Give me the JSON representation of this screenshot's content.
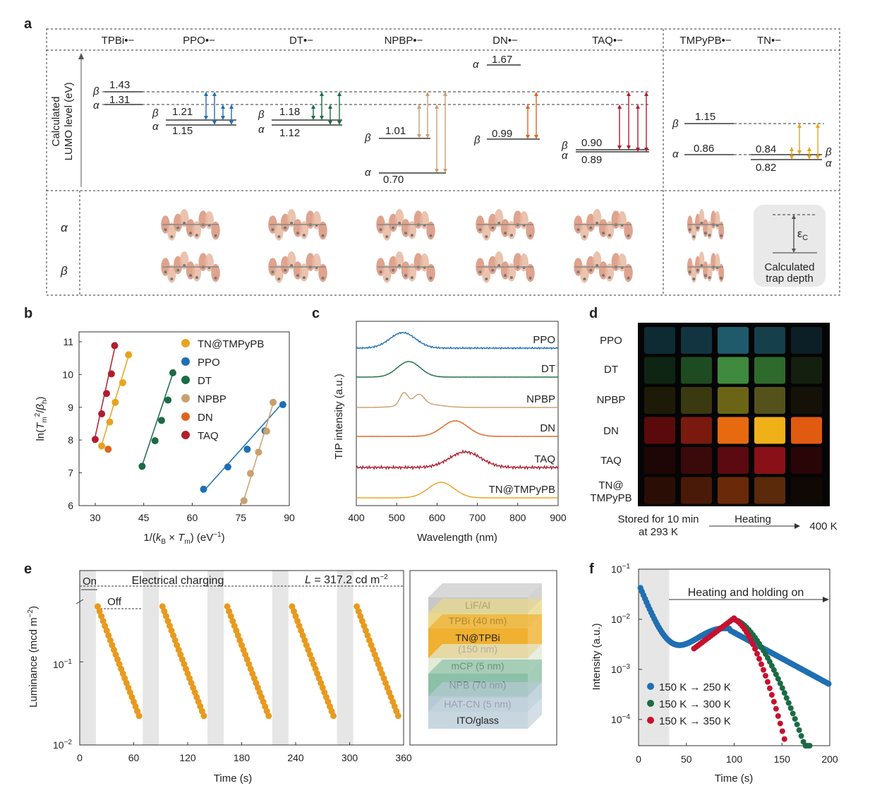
{
  "panel_labels": {
    "a": "a",
    "b": "b",
    "c": "c",
    "d": "d",
    "e": "e",
    "f": "f"
  },
  "panel_a": {
    "molecules": [
      "TPBi•−",
      "PPO•−",
      "DT•−",
      "NPBP•−",
      "DN•−",
      "TAQ•−",
      "TMPyPB•−",
      "TN•−"
    ],
    "ylabel_line1": "Calculated",
    "ylabel_line2": "LUMO level (eV)",
    "alpha": "α",
    "beta": "β",
    "levels": {
      "TPBi": {
        "beta": "1.43",
        "alpha": "1.31"
      },
      "PPO": {
        "beta": "1.21",
        "alpha": "1.15"
      },
      "DT": {
        "beta": "1.18",
        "alpha": "1.12"
      },
      "NPBP": {
        "beta": "1.01",
        "alpha": "0.70"
      },
      "DN": {
        "alpha": "1.67",
        "beta": "0.99"
      },
      "TAQ": {
        "beta": "0.90",
        "alpha": "0.89"
      },
      "TMPyPB": {
        "beta": "1.15",
        "alpha": "0.86"
      },
      "TN": {
        "beta": "0.84",
        "alpha": "0.82"
      }
    },
    "legend_eps": "ε",
    "legend_eps_sub": "C",
    "legend_line1": "Calculated",
    "legend_line2": "trap depth",
    "arrow_colors": {
      "PPO": "#1f6fb2",
      "DT": "#1b6b45",
      "NPBP": "#c9a071",
      "DN": "#e0641e",
      "TAQ": "#b01e2e",
      "TN": "#e8a31e"
    }
  },
  "panel_b": {
    "chart_data": {
      "type": "scatter",
      "xlabel": "1/(kB × Tm) (eV−1)",
      "ylabel": "ln(Tm2/βh)",
      "xlim": [
        25,
        90
      ],
      "ylim": [
        6,
        11.3
      ],
      "xticks": [
        30,
        45,
        60,
        75,
        90
      ],
      "yticks": [
        6,
        7,
        8,
        9,
        10,
        11
      ],
      "series": [
        {
          "name": "TN@TMPyPB",
          "color": "#e8a31e",
          "x": [
            32,
            34.5,
            36.2,
            38.5,
            40.3
          ],
          "y": [
            7.82,
            8.55,
            9.15,
            9.75,
            10.6
          ]
        },
        {
          "name": "PPO",
          "color": "#1f6fb2",
          "x": [
            63.5,
            71,
            77,
            82.5,
            88
          ],
          "y": [
            6.5,
            7.18,
            7.72,
            8.28,
            9.08
          ]
        },
        {
          "name": "DT",
          "color": "#1b6b45",
          "x": [
            44.5,
            48.5,
            50.5,
            52.5,
            54
          ],
          "y": [
            7.2,
            7.98,
            8.6,
            9.22,
            10.05
          ]
        },
        {
          "name": "NPBP",
          "color": "#c9a071",
          "x": [
            76,
            78,
            80.5,
            83,
            85
          ],
          "y": [
            6.15,
            6.98,
            7.63,
            8.27,
            9.15
          ]
        },
        {
          "name": "DN",
          "color": "#e0641e",
          "x": [
            34
          ],
          "y": [
            7.72
          ]
        },
        {
          "name": "TAQ",
          "color": "#b01e2e",
          "x": [
            30,
            32,
            33.5,
            35,
            36
          ],
          "y": [
            8.02,
            8.8,
            9.42,
            10.02,
            10.88
          ]
        }
      ]
    }
  },
  "panel_c": {
    "chart_data": {
      "type": "line",
      "xlabel": "Wavelength (nm)",
      "ylabel": "TIP intensity (a.u.)",
      "xlim": [
        400,
        900
      ],
      "xticks": [
        400,
        500,
        600,
        700,
        800,
        900
      ],
      "series": [
        {
          "name": "PPO",
          "color": "#1f6fb2",
          "peak": 515,
          "width": 45
        },
        {
          "name": "DT",
          "color": "#1b6b45",
          "peak": 530,
          "width": 40
        },
        {
          "name": "NPBP",
          "color": "#c9a071",
          "peak": 520,
          "width": 35
        },
        {
          "name": "DN",
          "color": "#e0641e",
          "peak": 645,
          "width": 45
        },
        {
          "name": "TAQ",
          "color": "#b01e2e",
          "peak": 670,
          "width": 55
        },
        {
          "name": "TN@TMPyPB",
          "color": "#e8a31e",
          "peak": 610,
          "width": 45
        }
      ]
    }
  },
  "panel_d": {
    "rows": [
      "PPO",
      "DT",
      "NPBP",
      "DN",
      "TAQ",
      "TN@\nTMPyPB"
    ],
    "row_label_tn1": "TN@",
    "row_label_tn2": "TMPyPB",
    "caption_left1": "Stored for 10 min",
    "caption_left2": "at 293 K",
    "caption_mid": "Heating",
    "caption_right": "400 K",
    "tile_colors": [
      [
        "#0e2a33",
        "#123440",
        "#1e5a6a",
        "#163f4c",
        "#0c1f26"
      ],
      [
        "#0d2512",
        "#1f4b22",
        "#3f8a3e",
        "#2e6a2c",
        "#141f10"
      ],
      [
        "#1d1a08",
        "#3b3910",
        "#6a6516",
        "#54521a",
        "#141208"
      ],
      [
        "#5a0a0a",
        "#7a1a0e",
        "#e86a10",
        "#f0b018",
        "#e05a10"
      ],
      [
        "#1e0606",
        "#3a0a0a",
        "#5a0a10",
        "#8a1018",
        "#2a0508"
      ],
      [
        "#2a0e05",
        "#4a1a08",
        "#6a2a0a",
        "#5a2a0a",
        "#100805"
      ]
    ]
  },
  "panel_e": {
    "chart_data": {
      "type": "scatter",
      "xlabel": "Time (s)",
      "ylabel": "Luminance (mcd m−2)",
      "xticks": [
        0,
        60,
        120,
        180,
        240,
        300,
        360
      ],
      "xlim": [
        0,
        360
      ],
      "ylog": true,
      "ylim": [
        0.01,
        0.5
      ],
      "on_label": "On",
      "off_label": "Off",
      "charging_label": "Electrical charging",
      "L_label": "L",
      "L_value": " = 317.2 cd m",
      "L_exp": "−2",
      "y_top_tick": "10",
      "y_top_exp": "−1",
      "y_bot_tick": "10",
      "y_bot_exp": "−2",
      "decay_starts": [
        20,
        92,
        164,
        236,
        308
      ],
      "on_windows": [
        [
          0,
          18
        ],
        [
          70,
          88
        ],
        [
          142,
          160
        ],
        [
          214,
          232
        ],
        [
          286,
          304
        ]
      ]
    },
    "stack_layers": [
      {
        "label": "LiF/Al",
        "color": "#c8c8c8"
      },
      {
        "label": "TPBi (40 nm)",
        "color": "#ead88a"
      },
      {
        "label": "TN@TPBi\n(150 nm)",
        "color": "#f0b030"
      },
      {
        "label": "mCP (5 nm)",
        "color": "#e3ebd8"
      },
      {
        "label": "NPB (70 nm)",
        "color": "#8cc0a8"
      },
      {
        "label": "HAT-CN (5 nm)",
        "color": "#b5cad4"
      },
      {
        "label": "ITO/glass",
        "color": "#c8d6e0"
      }
    ]
  },
  "panel_f": {
    "chart_data": {
      "type": "scatter",
      "xlabel": "Time (s)",
      "ylabel": "Intensity (a.u.)",
      "xlim": [
        0,
        200
      ],
      "xticks": [
        0,
        50,
        100,
        150,
        200
      ],
      "ylog": true,
      "ylim": [
        3e-05,
        0.1
      ],
      "yticks": [
        {
          "b": "10",
          "e": "−1"
        },
        {
          "b": "10",
          "e": "−2"
        },
        {
          "b": "10",
          "e": "−3"
        },
        {
          "b": "10",
          "e": "−4"
        }
      ],
      "annotation": "Heating and holding on",
      "series": [
        {
          "name": "150 K → 250 K",
          "color": "#1f6fb2"
        },
        {
          "name": "150 K → 300 K",
          "color": "#1b6b45"
        },
        {
          "name": "150 K → 350 K",
          "color": "#c8102e"
        }
      ]
    }
  }
}
